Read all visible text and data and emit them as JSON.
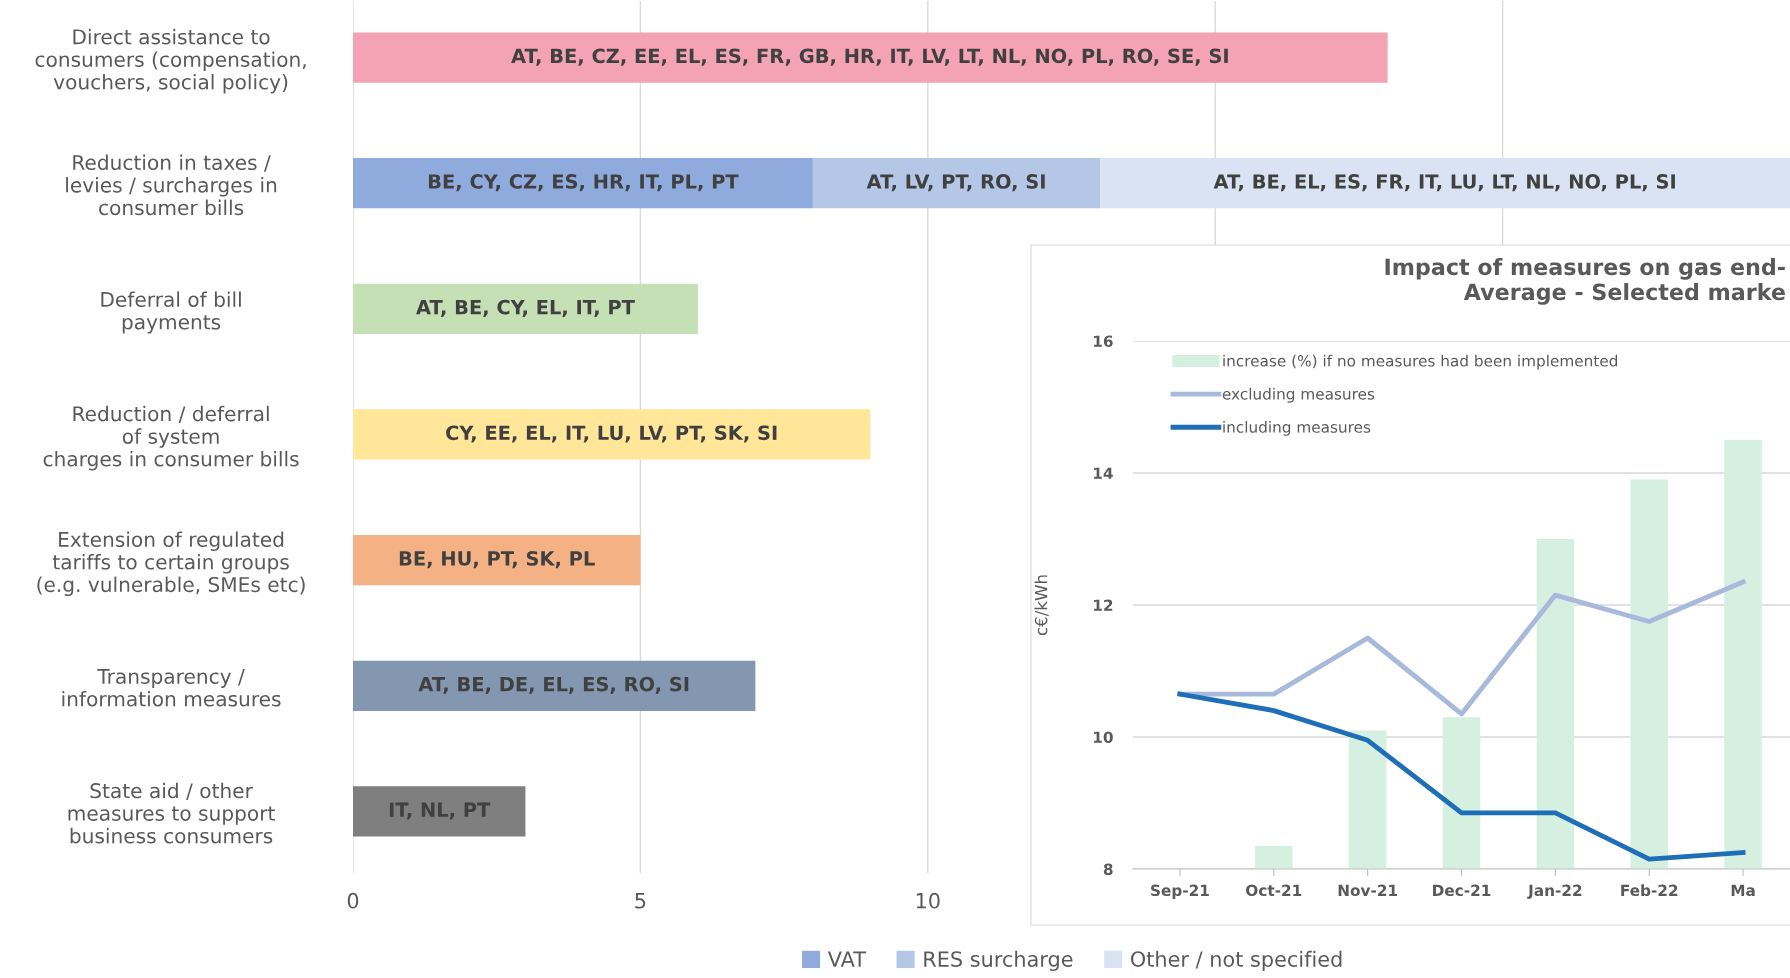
{
  "chart_data": [
    {
      "type": "bar",
      "orientation": "horizontal",
      "stacked": true,
      "categories": [
        "Direct assistance to\nconsumers (compensation,\nvouchers, social policy)",
        "Reduction in taxes /\nlevies / surcharges in\nconsumer bills",
        "Deferral of bill\npayments",
        "Reduction / deferral\nof system\ncharges in consumer bills",
        "Extension of regulated\ntariffs to certain groups\n(e.g. vulnerable, SMEs etc)",
        "Transparency /\ninformation measures",
        "State aid / other\nmeasures to support\nbusiness consumers"
      ],
      "series": [
        {
          "colors": [
            "#f4a3b4",
            null,
            "#c5e0b4",
            "#ffe699",
            "#f4b183",
            "#8497b0",
            "#7f7f7f"
          ],
          "values": [
            18,
            null,
            6,
            9,
            5,
            7,
            3
          ],
          "value_labels": [
            "AT, BE, CZ, EE, EL, ES, FR, GB, HR, IT, LV, LT, NL, NO, PL, RO, SE, SI",
            null,
            "AT, BE, CY, EL, IT, PT",
            "CY, EE, EL, IT, LU, LV, PT, SK, SI",
            "BE, HU, PT, SK, PL",
            "AT, BE, DE, EL, ES, RO, SI",
            "IT, NL, PT"
          ]
        },
        {
          "name": "VAT",
          "color": "#8faadc",
          "values": [
            null,
            8,
            null,
            null,
            null,
            null,
            null
          ],
          "value_labels": [
            null,
            "BE, CY, CZ, ES, HR, IT, PL, PT",
            null,
            null,
            null,
            null,
            null
          ]
        },
        {
          "name": "RES surcharge",
          "color": "#b4c7e7",
          "values": [
            null,
            5,
            null,
            null,
            null,
            null,
            null
          ],
          "value_labels": [
            null,
            "AT, LV, PT, RO, SI",
            null,
            null,
            null,
            null,
            null
          ]
        },
        {
          "name": "Other / not specified",
          "color": "#dae3f3",
          "values": [
            null,
            12,
            null,
            null,
            null,
            null,
            null
          ],
          "value_labels": [
            null,
            "AT, BE, EL, ES, FR, IT, LU, LT, NL, NO, PL, SI",
            null,
            null,
            null,
            null,
            null
          ]
        }
      ],
      "xlim": [
        0,
        25
      ],
      "xticks": [
        0,
        5,
        10,
        {
          "value": 15,
          "label": null
        },
        {
          "value": 20,
          "label": null
        }
      ],
      "grid": "x",
      "legend": "bottom"
    },
    {
      "type": "bar",
      "title": "Impact of measures on gas end-\nAverage - Selected marke",
      "ylabel": "c€/kWh",
      "categories": [
        "Sep-21",
        "Oct-21",
        "Nov-21",
        "Dec-21",
        "Jan-22",
        "Feb-22",
        "Ma"
      ],
      "series": [
        {
          "type": "bar",
          "name": "increase (%) if no measures had been implemented",
          "color": "#d5f0e0",
          "values": [
            null,
            8.35,
            10.1,
            10.3,
            13.0,
            13.9,
            14.5
          ]
        },
        {
          "type": "line",
          "name": "excluding measures",
          "color": "#a9b9dc",
          "values": [
            10.65,
            10.65,
            11.5,
            10.35,
            12.15,
            11.75,
            12.35
          ]
        },
        {
          "type": "line",
          "name": "including measures",
          "color": "#1f6fb8",
          "values": [
            10.65,
            10.4,
            9.95,
            8.85,
            8.85,
            8.15,
            8.25
          ]
        }
      ],
      "ylim": [
        8,
        16
      ],
      "yticks": [
        8,
        10,
        12,
        14,
        16
      ],
      "grid": "y",
      "legend": "top left"
    }
  ]
}
